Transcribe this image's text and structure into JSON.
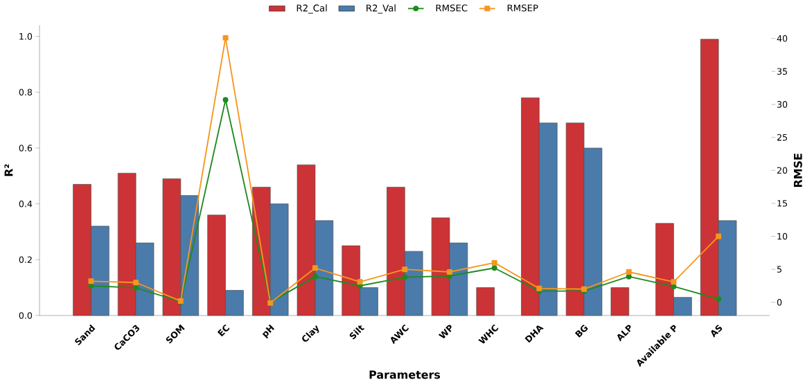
{
  "chart_data": {
    "type": "bar",
    "xlabel": "Parameters",
    "ylabel": "R²",
    "y2label": "RMSE",
    "categories": [
      "Sand",
      "CaCO3",
      "SOM",
      "EC",
      "pH",
      "Clay",
      "Silt",
      "AWC",
      "WP",
      "WHC",
      "DHA",
      "BG",
      "ALP",
      "Available P",
      "AS"
    ],
    "series": [
      {
        "name": "R2_Cal",
        "color": "#cc3336",
        "values": [
          0.47,
          0.51,
          0.49,
          0.36,
          0.46,
          0.54,
          0.25,
          0.46,
          0.35,
          0.1,
          0.78,
          0.69,
          0.1,
          0.33,
          0.99
        ]
      },
      {
        "name": "R2_Val",
        "color": "#4a7bab",
        "values": [
          0.32,
          0.26,
          0.43,
          0.09,
          0.4,
          0.34,
          0.1,
          0.23,
          0.26,
          null,
          0.69,
          0.6,
          null,
          0.065,
          0.34
        ]
      },
      {
        "name": "RMSEC",
        "type": "line",
        "axis": "y2",
        "marker": "circle",
        "color": "#1f8a1f",
        "values": [
          2.5,
          2.2,
          0.1,
          30.7,
          0.0,
          3.9,
          2.5,
          3.8,
          4.0,
          5.2,
          1.7,
          1.7,
          3.9,
          2.4,
          0.5
        ]
      },
      {
        "name": "RMSEP",
        "type": "line",
        "axis": "y2",
        "marker": "square",
        "color": "#f5961e",
        "values": [
          3.2,
          3.0,
          0.2,
          40.1,
          -0.1,
          5.2,
          3.1,
          5.0,
          4.6,
          6.0,
          2.1,
          2.0,
          4.6,
          3.1,
          10.0
        ]
      }
    ],
    "ylim": [
      0,
      1.04
    ],
    "yticks": [
      {
        "value": 0,
        "label": "0.0"
      },
      {
        "value": 0.2,
        "label": "0.2"
      },
      {
        "value": 0.4,
        "label": "0.4"
      },
      {
        "value": 0.6,
        "label": "0.6"
      },
      {
        "value": 0.8,
        "label": "0.8"
      },
      {
        "value": 1.0,
        "label": "1.0"
      }
    ],
    "y2lim": [
      -2,
      42
    ],
    "y2ticks": [
      0,
      5,
      10,
      15,
      20,
      25,
      30,
      35,
      40
    ],
    "legend": "top",
    "grid": false
  }
}
